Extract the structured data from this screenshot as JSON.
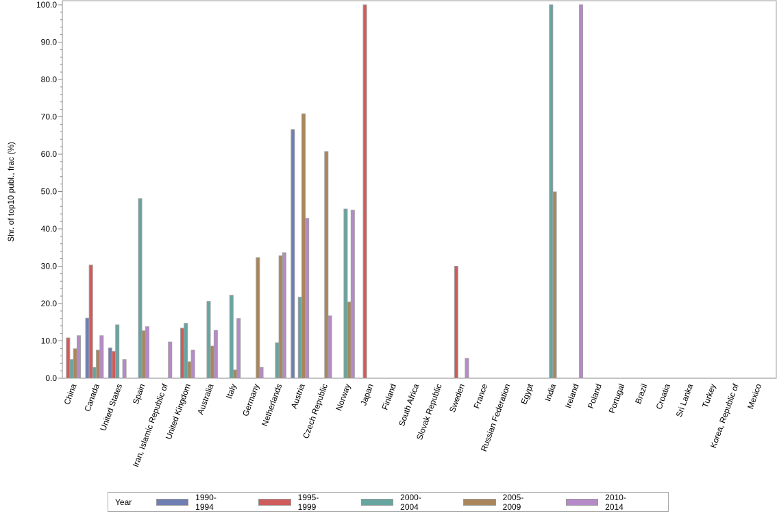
{
  "chart_data": {
    "type": "bar",
    "title": "",
    "xlabel": "",
    "ylabel": "Shr. of top10 publ., frac (%)",
    "ylim": [
      0,
      100
    ],
    "yticks": [
      "0.0",
      "10.0",
      "20.0",
      "30.0",
      "40.0",
      "50.0",
      "60.0",
      "70.0",
      "80.0",
      "90.0",
      "100.0"
    ],
    "legend_title": "Year",
    "legend_position": "bottom",
    "categories": [
      "China",
      "Canada",
      "United States",
      "Spain",
      "Iran, Islamic Republic of",
      "United Kingdom",
      "Australia",
      "Italy",
      "Germany",
      "Netherlands",
      "Austria",
      "Czech Republic",
      "Norway",
      "Japan",
      "Finland",
      "South Africa",
      "Slovak Republic",
      "Sweden",
      "France",
      "Russian Federation",
      "Egypt",
      "India",
      "Ireland",
      "Poland",
      "Portugal",
      "Brazil",
      "Croatia",
      "Sri Lanka",
      "Turkey",
      "Korea, Republic of",
      "Mexico"
    ],
    "series": [
      {
        "name": "1990-1994",
        "color": "#6f7eb3",
        "values": [
          null,
          16.1,
          8.1,
          null,
          null,
          null,
          null,
          null,
          null,
          null,
          66.6,
          null,
          null,
          null,
          null,
          null,
          null,
          null,
          null,
          null,
          null,
          null,
          null,
          null,
          null,
          null,
          null,
          null,
          null,
          null,
          null
        ]
      },
      {
        "name": "1995-1999",
        "color": "#d05b5b",
        "values": [
          10.8,
          30.3,
          7.2,
          null,
          null,
          13.4,
          null,
          null,
          null,
          null,
          null,
          null,
          null,
          100,
          null,
          null,
          null,
          30.0,
          null,
          null,
          null,
          null,
          null,
          null,
          null,
          null,
          null,
          null,
          null,
          null,
          null
        ]
      },
      {
        "name": "2000-2004",
        "color": "#66a5a0",
        "values": [
          5.0,
          2.9,
          14.3,
          48.1,
          null,
          14.7,
          20.6,
          22.2,
          null,
          9.5,
          21.7,
          null,
          45.3,
          null,
          null,
          null,
          null,
          null,
          null,
          null,
          null,
          100,
          null,
          null,
          null,
          null,
          null,
          null,
          null,
          null,
          null
        ]
      },
      {
        "name": "2005-2009",
        "color": "#a9865b",
        "values": [
          7.9,
          7.5,
          null,
          12.7,
          null,
          4.4,
          8.6,
          2.2,
          32.3,
          32.8,
          70.8,
          60.7,
          20.4,
          null,
          null,
          null,
          null,
          null,
          null,
          null,
          null,
          49.9,
          null,
          null,
          null,
          null,
          null,
          null,
          null,
          null,
          null
        ]
      },
      {
        "name": "2010-2014",
        "color": "#b689c9",
        "values": [
          11.4,
          11.4,
          5.0,
          13.8,
          9.7,
          7.5,
          12.8,
          16.0,
          2.9,
          33.6,
          42.8,
          16.7,
          45.0,
          null,
          null,
          null,
          null,
          5.3,
          null,
          null,
          null,
          null,
          100,
          null,
          null,
          null,
          null,
          null,
          null,
          null,
          null
        ]
      }
    ]
  }
}
